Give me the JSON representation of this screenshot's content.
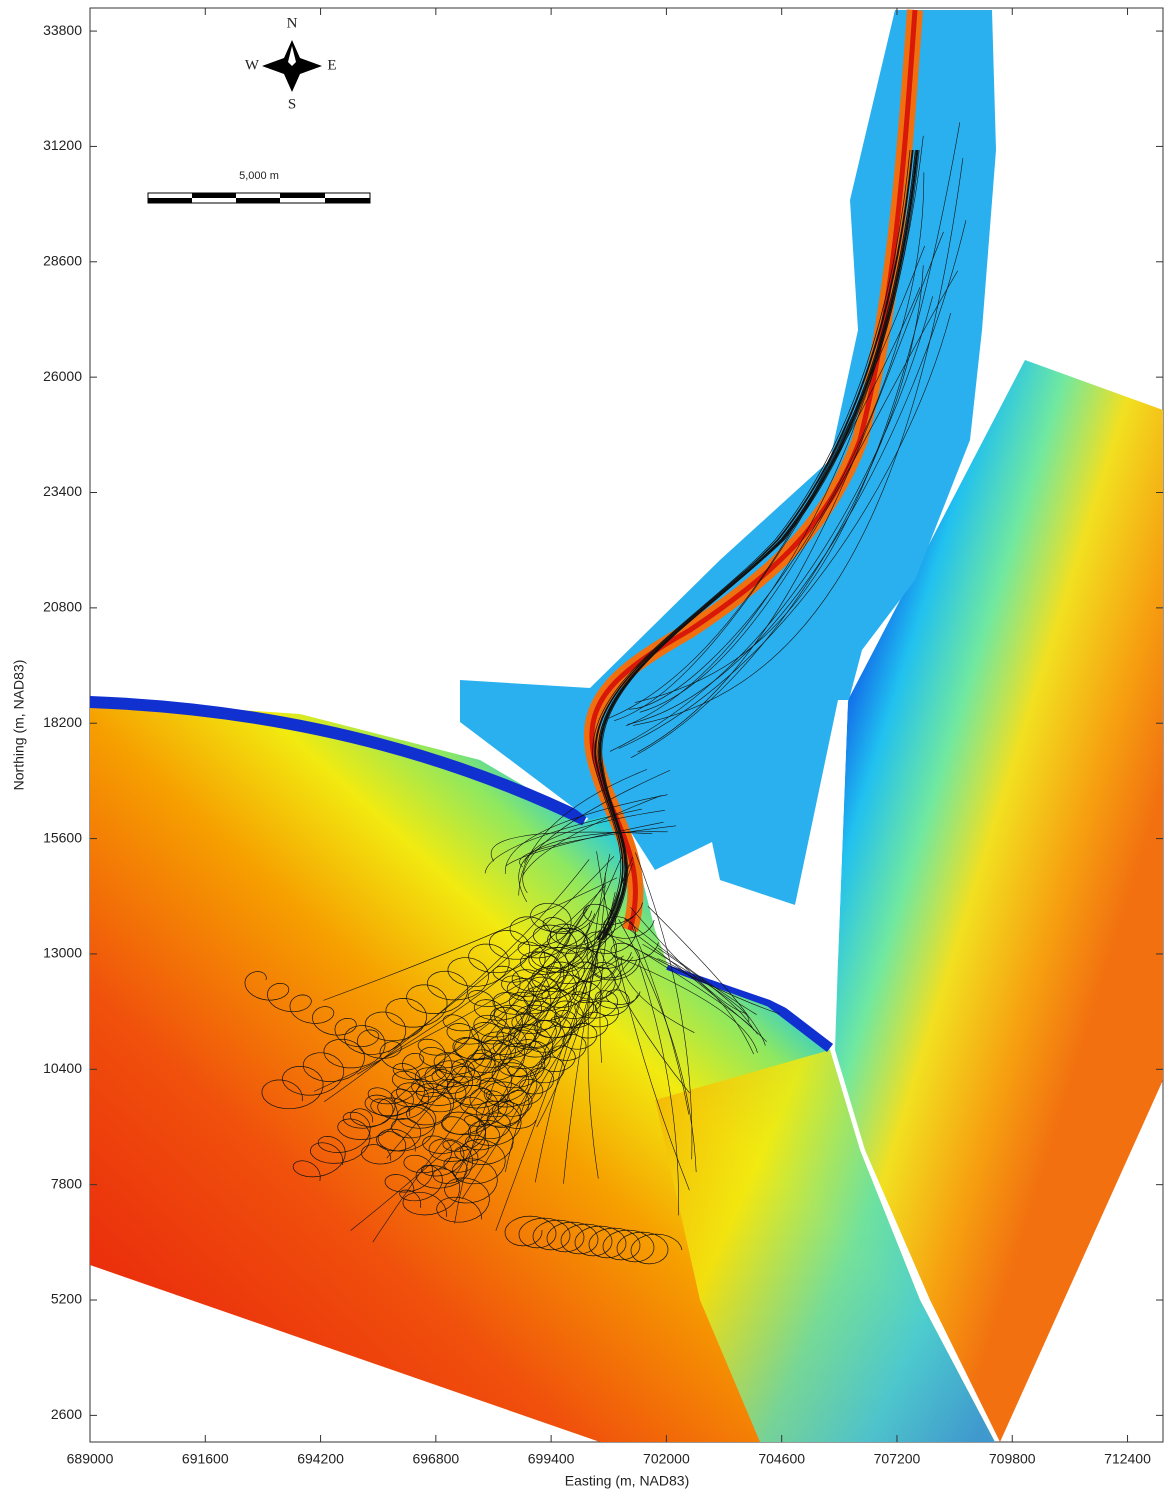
{
  "chart_data": {
    "type": "map",
    "x_label": "Easting (m, NAD83)",
    "y_label": "Northing (m, NAD83)",
    "xlim": [
      689000,
      713200
    ],
    "ylim": [
      2000,
      34320
    ],
    "xticks": [
      689000,
      691600,
      694200,
      696800,
      699400,
      702000,
      704600,
      707200,
      709800,
      712400
    ],
    "yticks": [
      2600,
      5200,
      7800,
      10400,
      13000,
      15600,
      18200,
      20800,
      23400,
      26000,
      28600,
      31200,
      33800
    ],
    "compass": {
      "north": "N",
      "south": "S",
      "east": "E",
      "west": "W"
    },
    "scale_bar": {
      "label": "5,000 m"
    }
  }
}
